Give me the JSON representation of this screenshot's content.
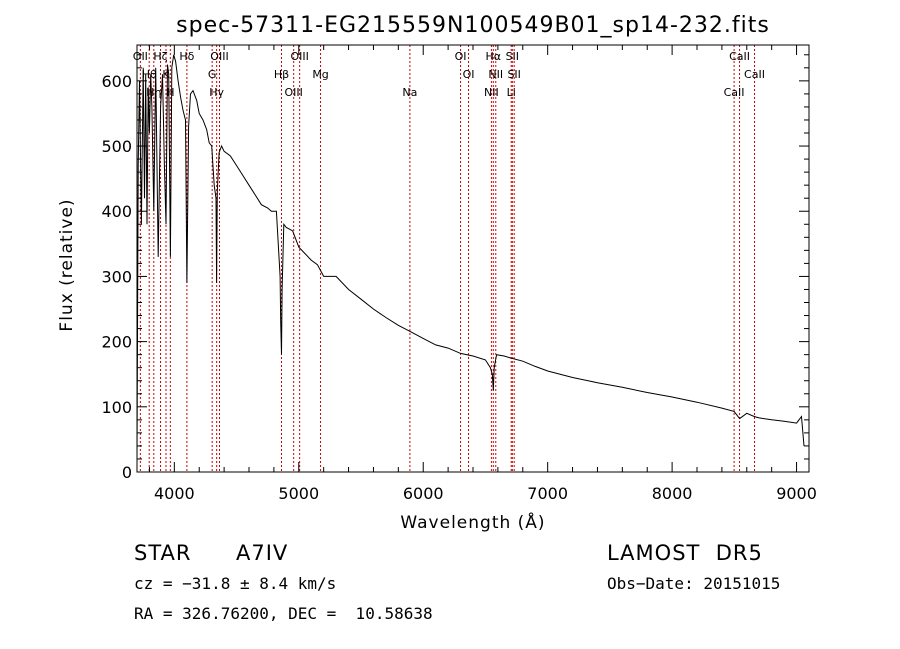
{
  "chart_data": {
    "type": "line",
    "title": "spec-57311-EG215559N100549B01_sp14-232.fits",
    "xlabel": "Wavelength (Å)",
    "ylabel": "Flux (relative)",
    "xlim": [
      3700,
      9100
    ],
    "ylim": [
      0,
      655
    ],
    "x_ticks": [
      4000,
      5000,
      6000,
      7000,
      8000,
      9000
    ],
    "x_tick_labels": [
      "4000",
      "5000",
      "6000",
      "7000",
      "8000",
      "9000"
    ],
    "y_ticks": [
      0,
      100,
      200,
      300,
      400,
      500,
      600
    ],
    "y_tick_labels": [
      "0",
      "100",
      "200",
      "300",
      "400",
      "500",
      "600"
    ],
    "grid": false,
    "series": [
      {
        "x": [
          3700,
          3710,
          3720,
          3735,
          3750,
          3760,
          3770,
          3780,
          3790,
          3800,
          3810,
          3820,
          3835,
          3850,
          3870,
          3890,
          3905,
          3920,
          3933,
          3945,
          3955,
          3968,
          3980,
          3995,
          4010,
          4030,
          4050,
          4070,
          4090,
          4101,
          4115,
          4130,
          4150,
          4180,
          4200,
          4230,
          4260,
          4280,
          4300,
          4320,
          4335,
          4340,
          4345,
          4360,
          4380,
          4400,
          4450,
          4500,
          4550,
          4600,
          4650,
          4700,
          4750,
          4780,
          4820,
          4850,
          4855,
          4861,
          4866,
          4880,
          4900,
          4950,
          5000,
          5050,
          5100,
          5150,
          5200,
          5300,
          5400,
          5500,
          5600,
          5700,
          5800,
          5900,
          6000,
          6100,
          6200,
          6300,
          6400,
          6500,
          6540,
          6555,
          6563,
          6570,
          6590,
          6650,
          6700,
          6800,
          6900,
          7000,
          7200,
          7400,
          7600,
          7800,
          8000,
          8200,
          8400,
          8498,
          8542,
          8600,
          8662,
          8700,
          8800,
          8900,
          9000,
          9020,
          9040,
          9060
        ],
        "y": [
          20,
          470,
          600,
          380,
          620,
          420,
          610,
          380,
          590,
          520,
          610,
          560,
          400,
          620,
          330,
          560,
          610,
          470,
          380,
          625,
          610,
          330,
          620,
          640,
          630,
          600,
          575,
          555,
          540,
          290,
          530,
          580,
          585,
          570,
          550,
          540,
          525,
          505,
          500,
          440,
          420,
          290,
          430,
          490,
          500,
          492,
          485,
          470,
          455,
          440,
          425,
          410,
          405,
          400,
          400,
          300,
          230,
          180,
          280,
          380,
          375,
          370,
          345,
          335,
          325,
          318,
          300,
          300,
          280,
          265,
          250,
          237,
          225,
          215,
          205,
          195,
          190,
          182,
          178,
          172,
          160,
          150,
          125,
          160,
          180,
          178,
          175,
          170,
          162,
          155,
          145,
          137,
          130,
          122,
          115,
          107,
          98,
          93,
          82,
          90,
          85,
          83,
          80,
          78,
          75,
          80,
          85,
          40
        ]
      }
    ],
    "lines": [
      {
        "wave": 3727,
        "label": "OII"
      },
      {
        "wave": 3798,
        "label": "Hθ"
      },
      {
        "wave": 3835,
        "label": "Hη"
      },
      {
        "wave": 3889,
        "label": "Hζ"
      },
      {
        "wave": 3933,
        "label": "K"
      },
      {
        "wave": 3968,
        "label": "H"
      },
      {
        "wave": 4101,
        "label": "Hδ"
      },
      {
        "wave": 4304,
        "label": "G"
      },
      {
        "wave": 4340,
        "label": "Hγ"
      },
      {
        "wave": 4363,
        "label": "OIII"
      },
      {
        "wave": 4861,
        "label": "Hβ"
      },
      {
        "wave": 4959,
        "label": "OIII"
      },
      {
        "wave": 5007,
        "label": "OIII"
      },
      {
        "wave": 5175,
        "label": "Mg"
      },
      {
        "wave": 5893,
        "label": "Na"
      },
      {
        "wave": 6300,
        "label": "OI"
      },
      {
        "wave": 6364,
        "label": "OI"
      },
      {
        "wave": 6548,
        "label": "NII"
      },
      {
        "wave": 6563,
        "label": "Hα"
      },
      {
        "wave": 6583,
        "label": "NII"
      },
      {
        "wave": 6707,
        "label": "Li"
      },
      {
        "wave": 6716,
        "label": "SII"
      },
      {
        "wave": 6731,
        "label": "SII"
      },
      {
        "wave": 8498,
        "label": "CaII"
      },
      {
        "wave": 8542,
        "label": "CaII"
      },
      {
        "wave": 8662,
        "label": "CaII"
      }
    ],
    "line_color": "#cc0000",
    "series_color": "#000000"
  },
  "info": {
    "object_class": "STAR",
    "subclass": "A7IV",
    "survey": "LAMOST  DR5",
    "redshift": "cz = −31.8 ± 8.4 km/s",
    "obs_date": "Obs−Date: 20151015",
    "coords": "RA = 326.76200, DEC =  10.58638"
  }
}
